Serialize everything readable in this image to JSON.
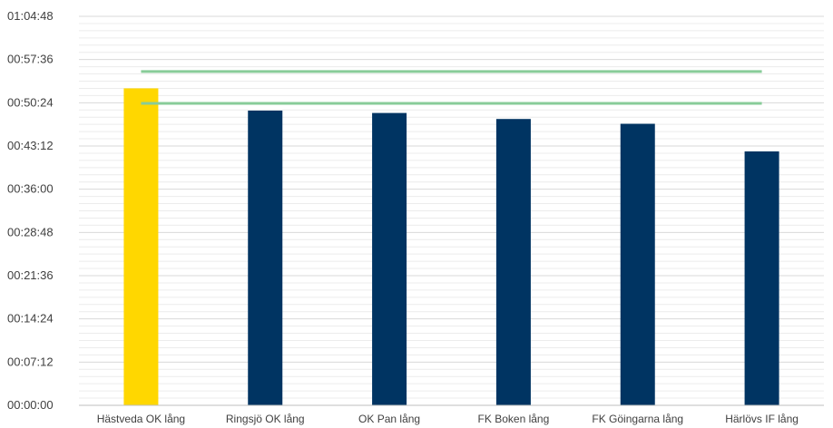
{
  "chart_data": {
    "type": "bar",
    "title": "",
    "xlabel": "",
    "ylabel": "",
    "categories": [
      "Hästveda OK lång",
      "Ringsjö OK lång",
      "OK Pan lång",
      "FK Boken lång",
      "FK Göingarna lång",
      "Härlövs IF lång"
    ],
    "values": [
      "00:52:48",
      "00:49:06",
      "00:48:42",
      "00:47:42",
      "00:46:54",
      "00:42:18"
    ],
    "value_seconds": [
      3168,
      2946,
      2922,
      2862,
      2814,
      2538
    ],
    "bar_colors": [
      "#FFD700",
      "#003462",
      "#003462",
      "#003462",
      "#003462",
      "#003462"
    ],
    "reference_lines": [
      {
        "value": "00:55:36",
        "seconds": 3336,
        "color": "#88CC99"
      },
      {
        "value": "00:50:18",
        "seconds": 3018,
        "color": "#88CC99"
      }
    ],
    "y_ticks": [
      "00:00:00",
      "00:07:12",
      "00:14:24",
      "00:21:36",
      "00:28:48",
      "00:36:00",
      "00:43:12",
      "00:50:24",
      "00:57:36",
      "01:04:48"
    ],
    "ylim_seconds": [
      0,
      3888
    ],
    "grid": true
  }
}
